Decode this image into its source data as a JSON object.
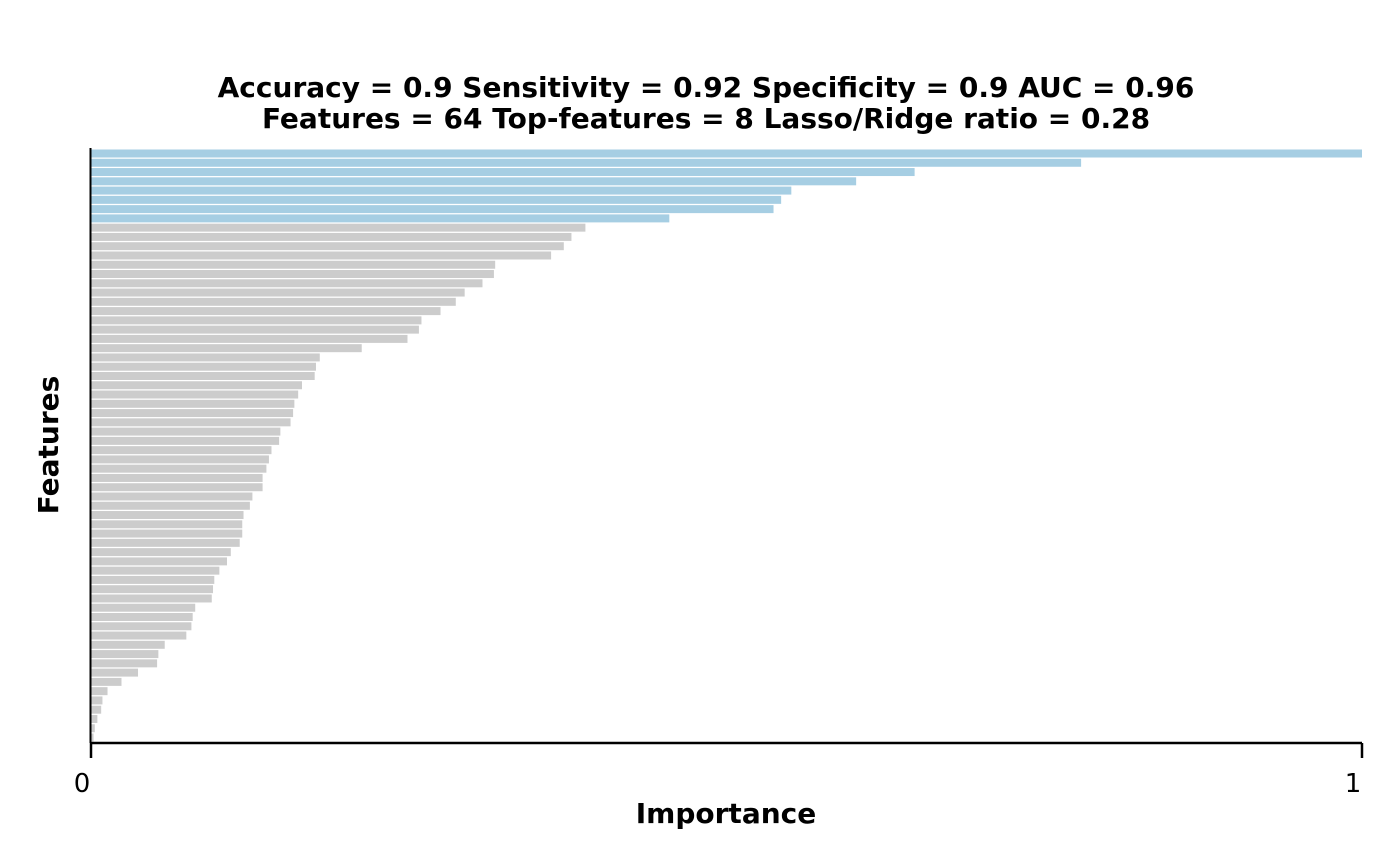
{
  "chart_data": {
    "type": "bar",
    "orientation": "horizontal",
    "title_lines": [
      "Accuracy = 0.9    Sensitivity = 0.92    Specificity = 0.9    AUC = 0.96",
      "Features = 64    Top-features = 8    Lasso/Ridge ratio = 0.28"
    ],
    "xlabel": "Importance",
    "ylabel": "Features",
    "xlim": [
      0,
      1
    ],
    "x_ticks": [
      {
        "value": 0,
        "label": "0"
      },
      {
        "value": 1,
        "label": "1"
      }
    ],
    "grid": false,
    "legend": "none",
    "top_features": 8,
    "colors": {
      "top": "#a6cee3",
      "other": "#cccccc",
      "axis": "#000000"
    },
    "values": [
      1.0,
      0.779,
      0.648,
      0.602,
      0.551,
      0.543,
      0.537,
      0.455,
      0.389,
      0.378,
      0.372,
      0.362,
      0.318,
      0.317,
      0.308,
      0.294,
      0.287,
      0.275,
      0.26,
      0.258,
      0.249,
      0.213,
      0.18,
      0.177,
      0.176,
      0.166,
      0.163,
      0.16,
      0.159,
      0.157,
      0.149,
      0.148,
      0.142,
      0.14,
      0.138,
      0.135,
      0.135,
      0.127,
      0.125,
      0.12,
      0.119,
      0.119,
      0.117,
      0.11,
      0.107,
      0.101,
      0.097,
      0.096,
      0.095,
      0.082,
      0.08,
      0.079,
      0.075,
      0.058,
      0.053,
      0.052,
      0.037,
      0.024,
      0.013,
      0.009,
      0.008,
      0.005,
      0.003,
      0.002
    ]
  }
}
